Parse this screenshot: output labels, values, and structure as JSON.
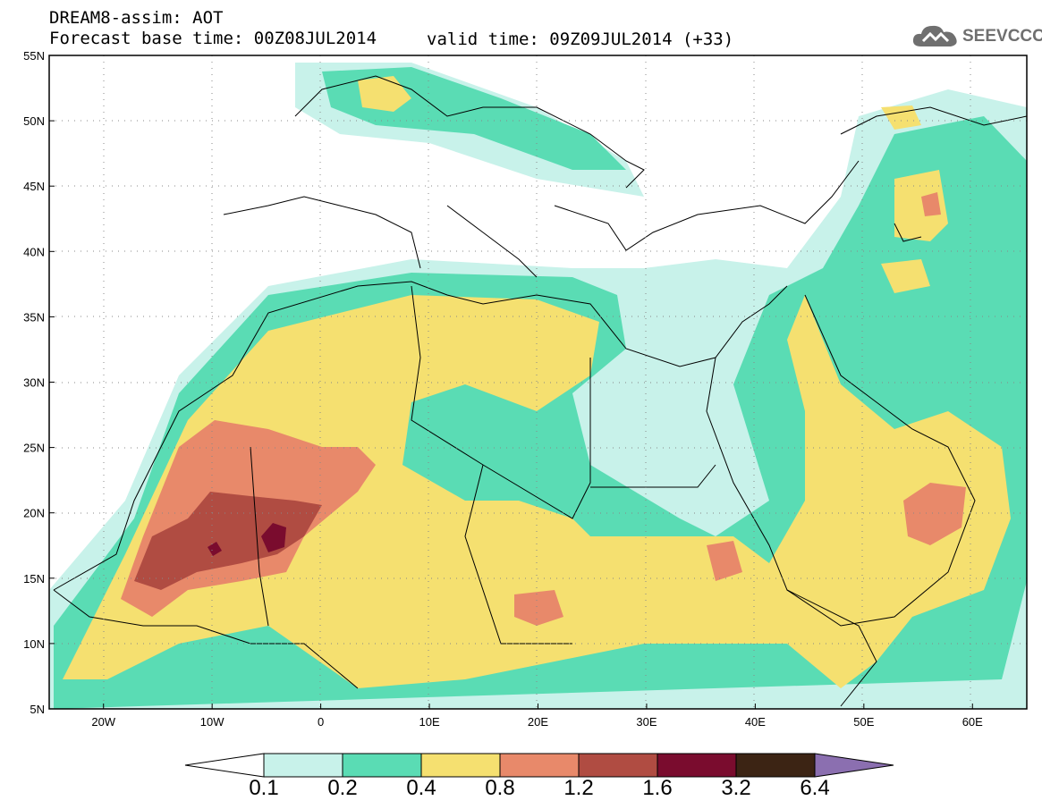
{
  "header": {
    "title": "DREAM8-assim: AOT",
    "base_time": "Forecast base time: 00Z08JUL2014",
    "valid_time": "valid time: 09Z09JUL2014 (+33)"
  },
  "logo": {
    "text": "SEEVCCC",
    "icon": "cloud-icon"
  },
  "map": {
    "lat_labels": [
      "55N",
      "50N",
      "45N",
      "40N",
      "35N",
      "30N",
      "25N",
      "20N",
      "15N",
      "10N",
      "5N"
    ],
    "lon_labels": [
      "20W",
      "10W",
      "0",
      "10E",
      "20E",
      "30E",
      "40E",
      "50E",
      "60E"
    ],
    "lon_range": [
      -25,
      65
    ],
    "lat_range": [
      5,
      55
    ]
  },
  "colorbar": {
    "labels": [
      "0.1",
      "0.2",
      "0.4",
      "0.8",
      "1.2",
      "1.6",
      "3.2",
      "6.4"
    ],
    "colors": [
      "#c8f2ea",
      "#5adcb4",
      "#f5e070",
      "#e8896a",
      "#b04c42",
      "#7a0c2e",
      "#3c2414",
      "#8b6fb0"
    ]
  }
}
